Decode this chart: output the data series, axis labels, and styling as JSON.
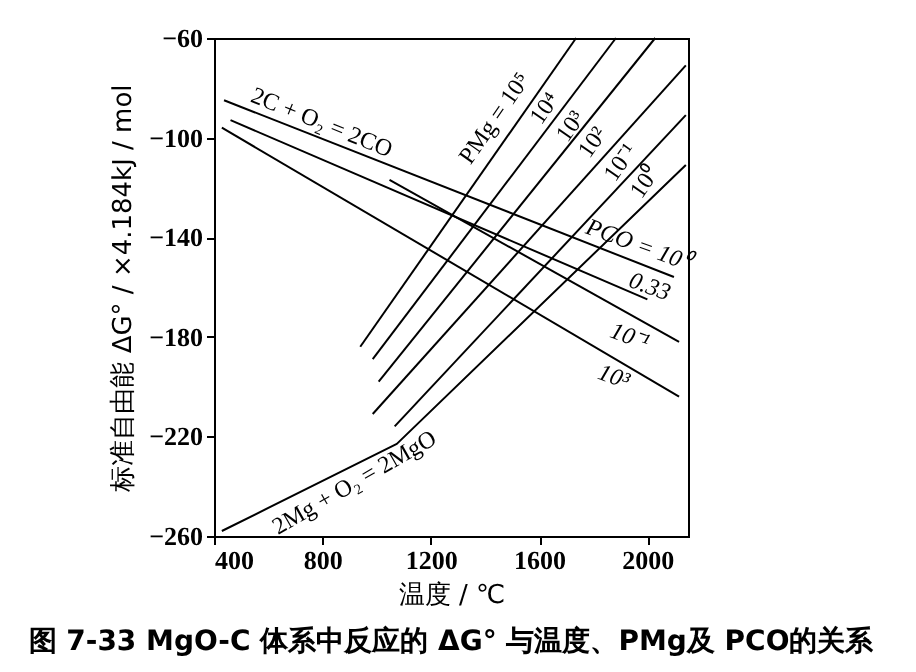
{
  "chart_data": {
    "type": "line",
    "title": "图 7-33 MgO-C 体系中反应的 ΔG° 与温度、PMg及 PCO的关系",
    "xlabel": "温度 / ℃",
    "ylabel": "标准自由能 ΔG° / ×4.184kJ / mol",
    "xlim": [
      400,
      2150
    ],
    "ylim": [
      -260,
      -60
    ],
    "xticks": [
      400,
      800,
      1200,
      1600,
      2000
    ],
    "yticks": [
      -260,
      -220,
      -180,
      -140,
      -100,
      -60
    ],
    "grid": false,
    "legend": false,
    "marker": "none",
    "line_style": "solid",
    "series": [
      {
        "color": "#000000",
        "x": [
          437,
          2098
        ],
        "values": [
          -85,
          -156
        ]
      },
      {
        "color": "#000000",
        "x": [
          461,
          2000
        ],
        "values": [
          -93,
          -165
        ]
      },
      {
        "color": "#000000",
        "x": [
          1048,
          2117
        ],
        "values": [
          -117,
          -182
        ]
      },
      {
        "color": "#000000",
        "x": [
          429,
          2117
        ],
        "values": [
          -96,
          -204
        ]
      },
      {
        "color": "#000000",
        "x": [
          940,
          1737
        ],
        "values": [
          -184,
          -60
        ]
      },
      {
        "color": "#000000",
        "x": [
          986,
          1884
        ],
        "values": [
          -189,
          -60
        ]
      },
      {
        "color": "#000000",
        "x": [
          1008,
          2029
        ],
        "values": [
          -198,
          -60
        ]
      },
      {
        "color": "#000000",
        "x": [
          986,
          2142
        ],
        "values": [
          -211,
          -71
        ]
      },
      {
        "color": "#000000",
        "x": [
          1067,
          2142
        ],
        "values": [
          -216,
          -91
        ]
      },
      {
        "color": "#000000",
        "x": [
          429,
          1075,
          2142
        ],
        "values": [
          -258,
          -223,
          -111
        ]
      }
    ],
    "annotations": [
      "2C + O₂ = 2CO",
      "PMg = 10⁵",
      "10⁴",
      "10³",
      "10²",
      "10⁻¹",
      "10⁰",
      "PCO = 10⁰",
      "0.33",
      "10⁻¹",
      "10³",
      "2Mg + O₂ = 2MgO"
    ]
  }
}
